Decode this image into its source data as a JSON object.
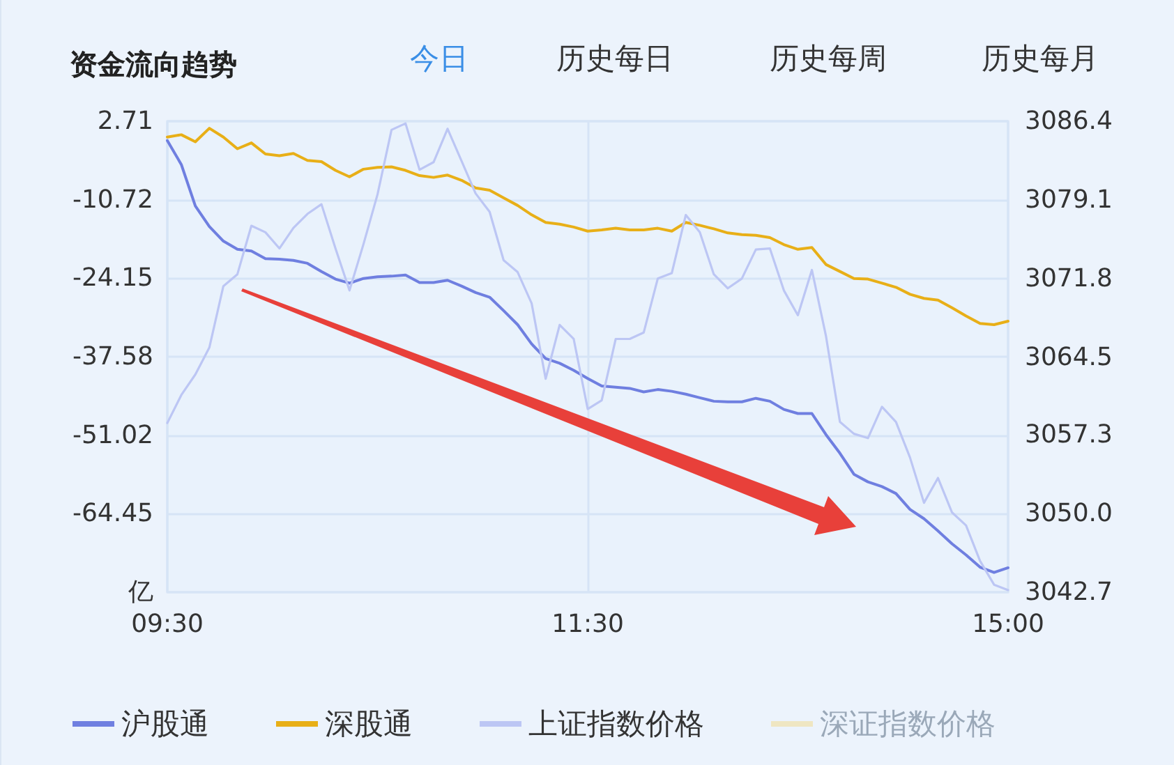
{
  "chart_data": {
    "type": "line",
    "title": "资金流向趋势",
    "annotations": [
      "今日",
      "历史每日",
      "历史每周",
      "历史每月"
    ],
    "categories": [
      "09:30",
      null,
      null,
      null,
      null,
      null,
      null,
      null,
      null,
      null,
      null,
      null,
      null,
      null,
      null,
      null,
      null,
      null,
      null,
      null,
      null,
      null,
      null,
      null,
      null,
      null,
      null,
      null,
      null,
      null,
      "11:30",
      null,
      null,
      null,
      null,
      null,
      null,
      null,
      null,
      null,
      null,
      null,
      null,
      null,
      null,
      null,
      null,
      null,
      null,
      null,
      null,
      null,
      null,
      null,
      null,
      null,
      null,
      null,
      null,
      null,
      "15:00"
    ],
    "ylim": [
      -77.88,
      2.71
    ],
    "yticks": [
      {
        "value": -77.88,
        "label": "亿"
      },
      -64.45,
      -51.02,
      -37.58,
      -24.15,
      -10.72,
      2.71
    ],
    "y2lim": [
      3042.7,
      3086.4
    ],
    "y2ticks": [
      3042.7,
      {
        "value": 3050,
        "label": "3050.0"
      },
      3057.3,
      3064.5,
      3071.8,
      3079.1,
      3086.4
    ],
    "grid": true,
    "legend": "bottom",
    "marker": "none",
    "series": [
      {
        "name": "沪股通",
        "color": "#6f7fe0",
        "values": [
          -0.6,
          -4.7,
          -11.8,
          -15.3,
          -17.8,
          -19.2,
          -19.5,
          -20.8,
          -20.9,
          -21.1,
          -21.6,
          -23.0,
          -24.3,
          -25.0,
          -24.2,
          -23.9,
          -23.8,
          -23.6,
          -24.9,
          -24.9,
          -24.5,
          -25.5,
          -26.6,
          -27.4,
          -29.7,
          -32.1,
          -35.4,
          -37.9,
          -38.7,
          -39.9,
          -41.3,
          -42.6,
          -42.8,
          -43.0,
          -43.6,
          -43.2,
          -43.5,
          -44.0,
          -44.6,
          -45.2,
          -45.3,
          -45.3,
          -44.7,
          -45.2,
          -46.6,
          -47.3,
          -47.3,
          -50.9,
          -54.1,
          -57.7,
          -59.0,
          -59.8,
          -61.0,
          -63.7,
          -65.3,
          -67.4,
          -69.6,
          -71.5,
          -73.6,
          -74.5,
          -73.7
        ]
      },
      {
        "name": "深股通",
        "color": "#e8af17",
        "values": [
          0.0,
          0.4,
          -0.8,
          1.5,
          0.0,
          -2.0,
          -1.0,
          -2.9,
          -3.2,
          -2.8,
          -4.0,
          -4.2,
          -5.7,
          -6.8,
          -5.5,
          -5.2,
          -5.1,
          -5.7,
          -6.6,
          -6.9,
          -6.5,
          -7.4,
          -8.7,
          -9.1,
          -10.4,
          -11.7,
          -13.3,
          -14.6,
          -14.9,
          -15.4,
          -16.1,
          -15.9,
          -15.6,
          -15.9,
          -15.9,
          -15.6,
          -16.1,
          -14.6,
          -15.1,
          -15.7,
          -16.4,
          -16.7,
          -16.8,
          -17.2,
          -18.4,
          -19.2,
          -18.9,
          -21.8,
          -23.0,
          -24.2,
          -24.3,
          -25.0,
          -25.7,
          -26.9,
          -27.6,
          -27.9,
          -29.2,
          -30.6,
          -31.9,
          -32.1,
          -31.5
        ]
      },
      {
        "name": "上证指数价格",
        "color": "#bcc6f4",
        "axis": "y2",
        "values": [
          3058.4,
          3061.0,
          3062.9,
          3065.4,
          3071.1,
          3072.2,
          3076.7,
          3076.1,
          3074.6,
          3076.5,
          3077.8,
          3078.7,
          3074.6,
          3070.7,
          3075.0,
          3079.6,
          3085.6,
          3086.2,
          3081.9,
          3082.6,
          3085.7,
          3082.7,
          3079.7,
          3078.0,
          3073.5,
          3072.4,
          3069.5,
          3062.5,
          3067.5,
          3066.2,
          3059.7,
          3060.5,
          3066.2,
          3066.2,
          3066.8,
          3071.8,
          3072.3,
          3077.7,
          3076.1,
          3072.2,
          3070.9,
          3071.8,
          3074.5,
          3074.6,
          3070.7,
          3068.4,
          3072.6,
          3066.5,
          3058.5,
          3057.4,
          3057.0,
          3059.9,
          3058.5,
          3055.2,
          3051.0,
          3053.3,
          3050.1,
          3048.9,
          3045.6,
          3043.4,
          3042.9
        ]
      },
      {
        "name": "深证指数价格",
        "color": "#efe6c2",
        "axis": "y2",
        "values": [
          null,
          null,
          null,
          null,
          null,
          null,
          null,
          null,
          null,
          null,
          null,
          null,
          null,
          null,
          null,
          null,
          null,
          null,
          null,
          null,
          null,
          null,
          null,
          null,
          null,
          null,
          null,
          null,
          null,
          null,
          null,
          null,
          null,
          null,
          null,
          null,
          null,
          null,
          null,
          null,
          null,
          null,
          null,
          null,
          null,
          null,
          null,
          null,
          null,
          null,
          null,
          null,
          null,
          null,
          null,
          null,
          null,
          null,
          null,
          null,
          null
        ]
      }
    ]
  }
}
